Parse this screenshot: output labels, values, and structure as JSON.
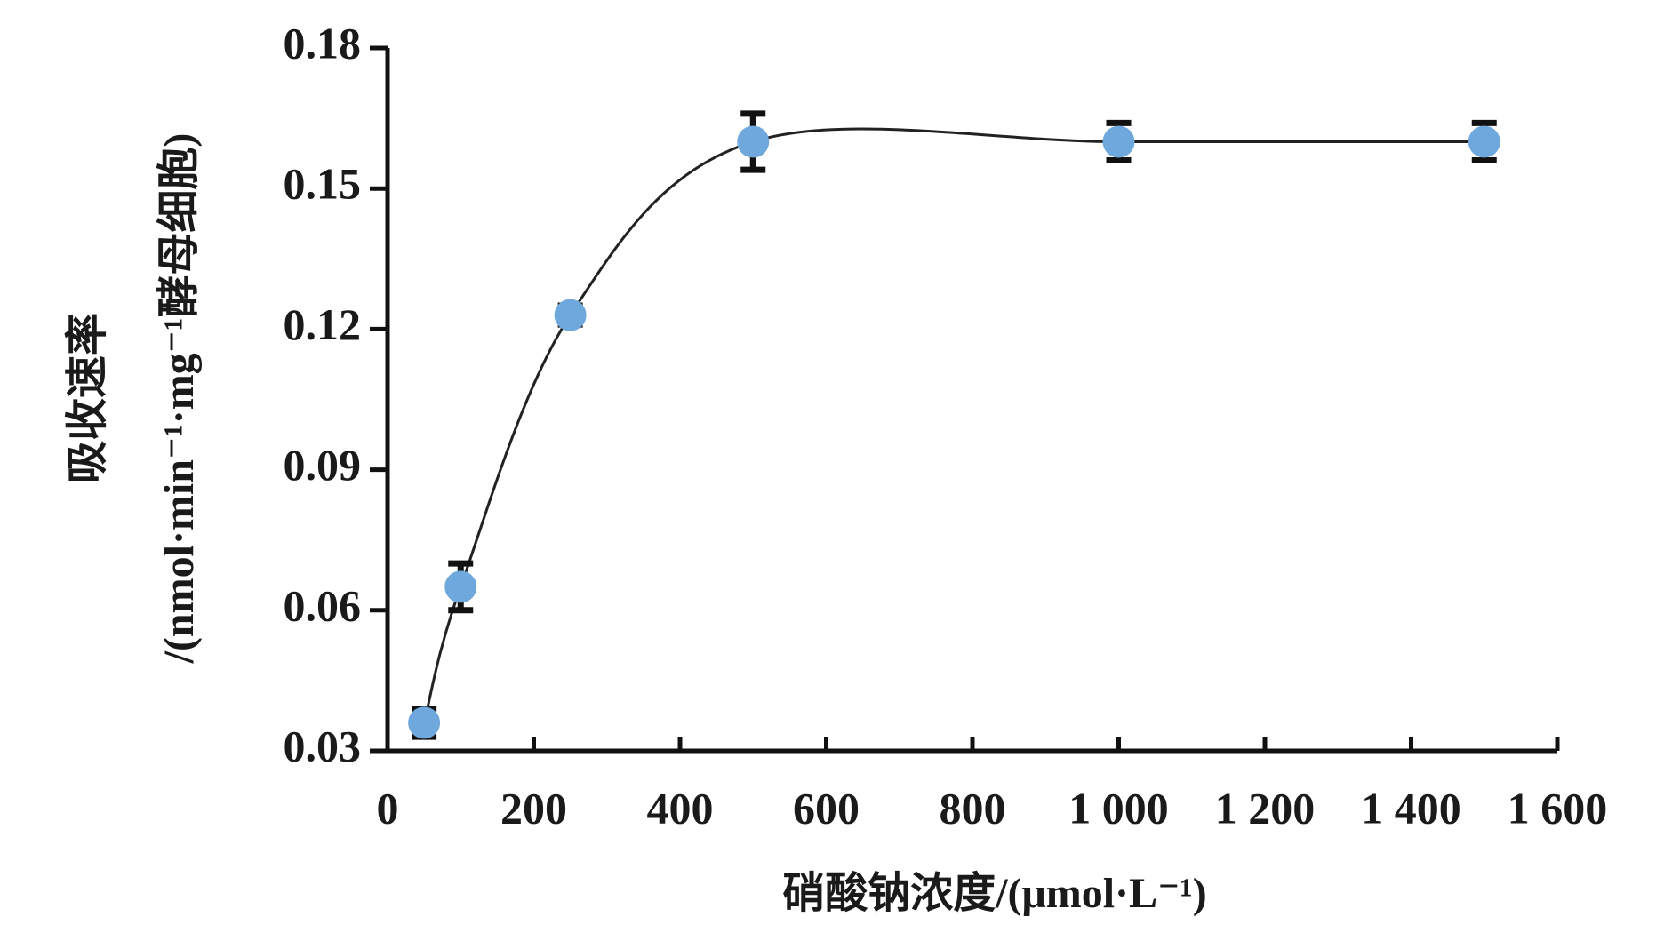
{
  "chart_data": {
    "type": "scatter",
    "xlabel": "硝酸钠浓度/(μmol·L⁻¹)",
    "ylabel": [
      "吸收速率",
      "/(nmol·min⁻¹·mg⁻¹酵母细胞)"
    ],
    "x": [
      50,
      100,
      250,
      500,
      1000,
      1500
    ],
    "values": [
      0.036,
      0.065,
      0.123,
      0.16,
      0.16,
      0.16
    ],
    "errors": [
      0.003,
      0.005,
      0.002,
      0.006,
      0.004,
      0.004
    ],
    "color": "#6fa8dc",
    "smooth_line": true,
    "xlim": [
      0,
      1600
    ],
    "xticks": [
      0,
      200,
      400,
      600,
      800,
      {
        "value": 1000,
        "label": "1 000"
      },
      {
        "value": 1200,
        "label": "1 200"
      },
      {
        "value": 1400,
        "label": "1 400"
      },
      {
        "value": 1600,
        "label": "1 600"
      }
    ],
    "ylim": [
      0.03,
      0.18
    ],
    "yticks": [
      0.03,
      0.06,
      0.09,
      0.12,
      0.15,
      0.18
    ]
  }
}
